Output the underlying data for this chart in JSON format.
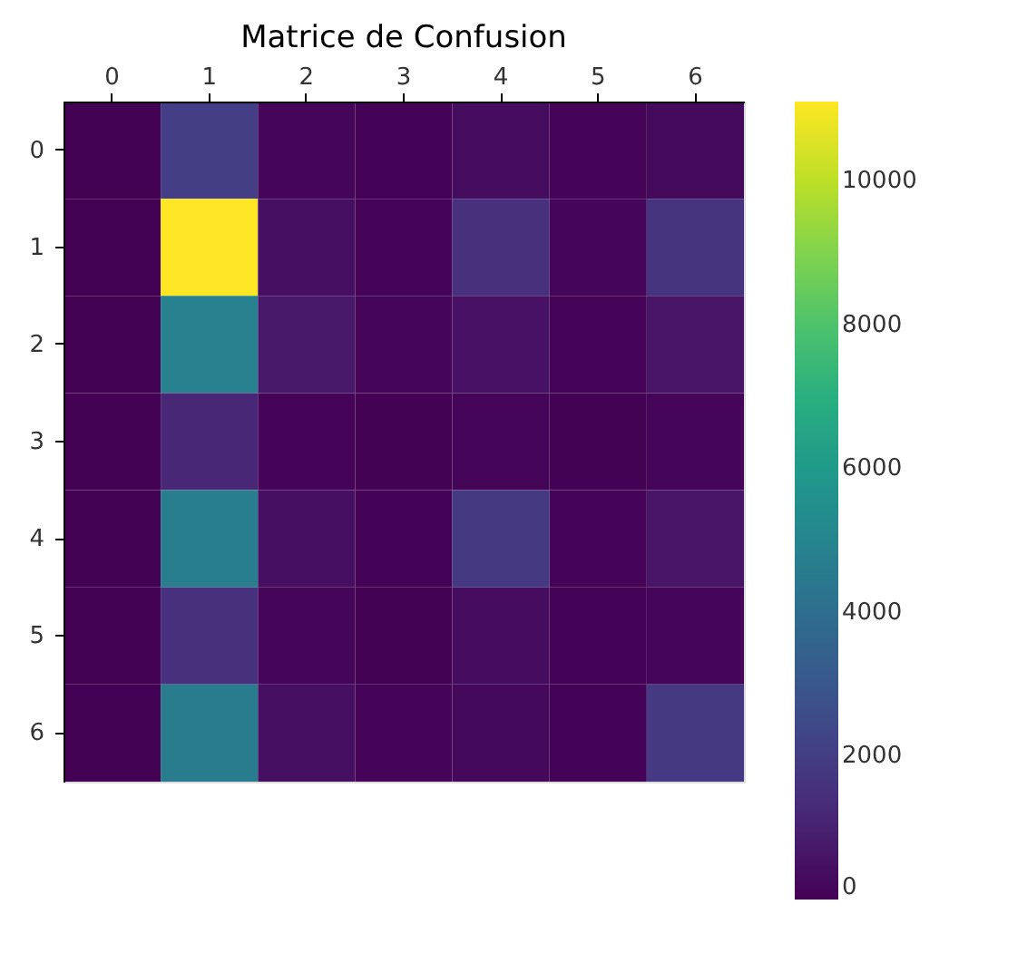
{
  "chart_data": {
    "type": "heatmap",
    "title": "Matrice de Confusion",
    "categories": [
      "0",
      "1",
      "2",
      "3",
      "4",
      "5",
      "6"
    ],
    "y_categories": [
      "0",
      "1",
      "2",
      "3",
      "4",
      "5",
      "6"
    ],
    "cells": [
      [
        30,
        2000,
        100,
        50,
        300,
        80,
        250
      ],
      [
        20,
        11100,
        400,
        80,
        1500,
        100,
        1600
      ],
      [
        30,
        4800,
        700,
        100,
        500,
        80,
        600
      ],
      [
        20,
        1200,
        80,
        30,
        150,
        40,
        100
      ],
      [
        30,
        4700,
        400,
        60,
        1800,
        90,
        600
      ],
      [
        20,
        1500,
        100,
        40,
        300,
        50,
        150
      ],
      [
        30,
        4600,
        400,
        80,
        200,
        60,
        1800
      ]
    ],
    "clim": [
      0,
      11100
    ],
    "cticks": [
      0,
      2000,
      4000,
      6000,
      8000,
      10000
    ]
  }
}
